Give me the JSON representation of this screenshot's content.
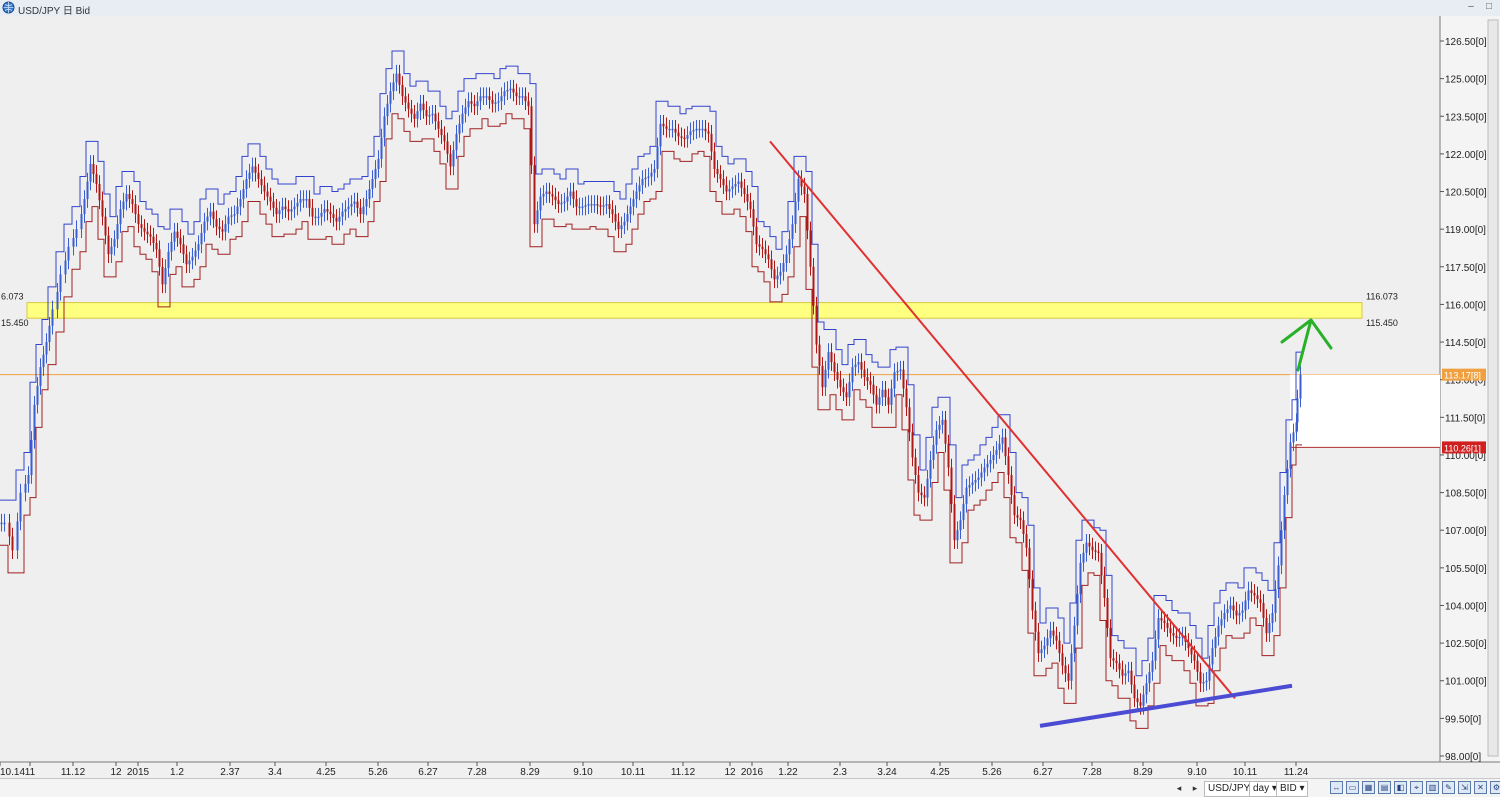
{
  "window": {
    "title": "USD/JPY 日 Bid",
    "logo_icon": "globe-icon",
    "buttons": [
      "–",
      "□"
    ]
  },
  "toolbar": {
    "instrument": "USD/JPY ▾",
    "period": "day ▾",
    "side": "BID ▾",
    "nav_left": "◂",
    "nav_right": "▸",
    "tools": [
      "↔",
      "▭",
      "▦",
      "▤",
      "◧",
      "⌖",
      "▥",
      "✎",
      "⇲",
      "✕",
      "⚙",
      "▣",
      "⚲",
      "⟲"
    ]
  },
  "chart_data": {
    "type": "candlestick",
    "instrument": "USD/JPY",
    "timeframe": "day",
    "price_side": "Bid",
    "ylim": [
      98.0,
      127.0
    ],
    "y_ticks": [
      "126.50[0]",
      "125.00[0]",
      "123.50[0]",
      "122.00[0]",
      "120.50[0]",
      "119.00[0]",
      "117.50[0]",
      "116.00[0]",
      "114.50[0]",
      "113.00[0]",
      "111.50[0]",
      "110.00[0]",
      "108.50[0]",
      "107.00[0]",
      "105.50[0]",
      "104.00[0]",
      "102.50[0]",
      "101.00[0]",
      "99.50[0]",
      "98.00[0]"
    ],
    "x_ticks": [
      "10.14",
      "11",
      "11.12",
      "12",
      "2015",
      "1.2",
      "2.37",
      "3.4",
      "4.25",
      "5.26",
      "6.27",
      "7.28",
      "8.29",
      "9.10",
      "10.11",
      "11.12",
      "12",
      "2016",
      "1.22",
      "2.3",
      "3.24",
      "4.25",
      "5.26",
      "6.27",
      "7.28",
      "8.29",
      "9.10",
      "10.11",
      "11.24"
    ],
    "price_path": [
      [
        0,
        107.3
      ],
      [
        8,
        106.2
      ],
      [
        16,
        108.5
      ],
      [
        24,
        109.2
      ],
      [
        30,
        112.0
      ],
      [
        36,
        113.5
      ],
      [
        42,
        114.5
      ],
      [
        48,
        115.8
      ],
      [
        56,
        117.2
      ],
      [
        64,
        118.3
      ],
      [
        72,
        119.0
      ],
      [
        80,
        120.2
      ],
      [
        86,
        121.6
      ],
      [
        92,
        120.8
      ],
      [
        98,
        119.5
      ],
      [
        104,
        118.0
      ],
      [
        110,
        118.6
      ],
      [
        116,
        119.8
      ],
      [
        122,
        120.4
      ],
      [
        128,
        120.0
      ],
      [
        134,
        119.2
      ],
      [
        140,
        118.9
      ],
      [
        146,
        118.7
      ],
      [
        152,
        118.2
      ],
      [
        158,
        116.8
      ],
      [
        164,
        118.1
      ],
      [
        170,
        118.9
      ],
      [
        176,
        118.4
      ],
      [
        182,
        117.6
      ],
      [
        188,
        117.9
      ],
      [
        194,
        118.4
      ],
      [
        200,
        119.3
      ],
      [
        206,
        119.7
      ],
      [
        212,
        119.1
      ],
      [
        218,
        118.9
      ],
      [
        224,
        119.5
      ],
      [
        230,
        119.6
      ],
      [
        236,
        120.2
      ],
      [
        242,
        121.0
      ],
      [
        248,
        121.5
      ],
      [
        254,
        121.0
      ],
      [
        260,
        120.5
      ],
      [
        266,
        120.1
      ],
      [
        272,
        119.6
      ],
      [
        278,
        119.9
      ],
      [
        284,
        119.7
      ],
      [
        290,
        119.9
      ],
      [
        296,
        120.2
      ],
      [
        302,
        120.2
      ],
      [
        308,
        119.5
      ],
      [
        314,
        119.5
      ],
      [
        320,
        119.8
      ],
      [
        326,
        119.6
      ],
      [
        332,
        119.3
      ],
      [
        338,
        119.7
      ],
      [
        344,
        119.9
      ],
      [
        350,
        120.1
      ],
      [
        356,
        119.6
      ],
      [
        362,
        120.2
      ],
      [
        368,
        121.0
      ],
      [
        374,
        121.8
      ],
      [
        380,
        123.5
      ],
      [
        386,
        124.5
      ],
      [
        392,
        125.2
      ],
      [
        398,
        124.3
      ],
      [
        404,
        123.8
      ],
      [
        410,
        123.4
      ],
      [
        416,
        124.0
      ],
      [
        422,
        123.5
      ],
      [
        428,
        123.6
      ],
      [
        434,
        123.0
      ],
      [
        440,
        122.5
      ],
      [
        446,
        121.5
      ],
      [
        452,
        122.8
      ],
      [
        458,
        123.6
      ],
      [
        464,
        124.1
      ],
      [
        470,
        123.9
      ],
      [
        476,
        124.3
      ],
      [
        482,
        124.3
      ],
      [
        488,
        124.0
      ],
      [
        494,
        124.1
      ],
      [
        500,
        124.5
      ],
      [
        506,
        124.6
      ],
      [
        512,
        124.3
      ],
      [
        518,
        124.3
      ],
      [
        524,
        123.9
      ],
      [
        530,
        119.2
      ],
      [
        536,
        120.3
      ],
      [
        542,
        120.5
      ],
      [
        548,
        120.3
      ],
      [
        554,
        120.0
      ],
      [
        560,
        120.1
      ],
      [
        566,
        120.5
      ],
      [
        572,
        119.9
      ],
      [
        578,
        119.9
      ],
      [
        584,
        120.0
      ],
      [
        590,
        120.0
      ],
      [
        596,
        119.9
      ],
      [
        602,
        120.0
      ],
      [
        608,
        119.6
      ],
      [
        614,
        119.0
      ],
      [
        620,
        119.3
      ],
      [
        626,
        119.9
      ],
      [
        632,
        120.5
      ],
      [
        638,
        121.0
      ],
      [
        644,
        121.1
      ],
      [
        650,
        121.4
      ],
      [
        656,
        123.2
      ],
      [
        662,
        123.0
      ],
      [
        668,
        123.0
      ],
      [
        674,
        122.7
      ],
      [
        680,
        122.6
      ],
      [
        686,
        122.9
      ],
      [
        692,
        123.0
      ],
      [
        698,
        123.0
      ],
      [
        704,
        122.8
      ],
      [
        710,
        121.4
      ],
      [
        716,
        121.0
      ],
      [
        722,
        120.5
      ],
      [
        728,
        120.7
      ],
      [
        734,
        120.9
      ],
      [
        740,
        120.4
      ],
      [
        746,
        119.8
      ],
      [
        752,
        118.4
      ],
      [
        758,
        118.2
      ],
      [
        764,
        117.8
      ],
      [
        770,
        117.0
      ],
      [
        776,
        117.3
      ],
      [
        782,
        118.0
      ],
      [
        788,
        119.2
      ],
      [
        794,
        121.0
      ],
      [
        800,
        120.4
      ],
      [
        806,
        117.5
      ],
      [
        812,
        114.4
      ],
      [
        818,
        112.7
      ],
      [
        824,
        114.1
      ],
      [
        830,
        113.3
      ],
      [
        836,
        112.7
      ],
      [
        842,
        112.3
      ],
      [
        848,
        113.5
      ],
      [
        854,
        113.7
      ],
      [
        860,
        113.1
      ],
      [
        866,
        112.8
      ],
      [
        872,
        112.0
      ],
      [
        878,
        112.6
      ],
      [
        884,
        112.0
      ],
      [
        890,
        113.3
      ],
      [
        896,
        113.4
      ],
      [
        902,
        111.9
      ],
      [
        908,
        109.9
      ],
      [
        914,
        108.5
      ],
      [
        920,
        108.3
      ],
      [
        926,
        109.8
      ],
      [
        932,
        111.0
      ],
      [
        938,
        111.4
      ],
      [
        944,
        109.5
      ],
      [
        950,
        106.6
      ],
      [
        956,
        107.4
      ],
      [
        962,
        108.7
      ],
      [
        968,
        108.9
      ],
      [
        974,
        109.1
      ],
      [
        980,
        109.5
      ],
      [
        986,
        109.8
      ],
      [
        992,
        110.2
      ],
      [
        998,
        110.7
      ],
      [
        1004,
        109.2
      ],
      [
        1010,
        107.6
      ],
      [
        1016,
        107.4
      ],
      [
        1022,
        106.3
      ],
      [
        1028,
        103.8
      ],
      [
        1034,
        102.1
      ],
      [
        1040,
        102.4
      ],
      [
        1046,
        103.0
      ],
      [
        1052,
        102.6
      ],
      [
        1058,
        101.6
      ],
      [
        1064,
        101.0
      ],
      [
        1070,
        103.2
      ],
      [
        1076,
        105.7
      ],
      [
        1082,
        106.5
      ],
      [
        1088,
        106.2
      ],
      [
        1094,
        106.1
      ],
      [
        1100,
        104.3
      ],
      [
        1106,
        101.9
      ],
      [
        1112,
        101.7
      ],
      [
        1118,
        101.2
      ],
      [
        1124,
        101.4
      ],
      [
        1130,
        100.3
      ],
      [
        1136,
        100.0
      ],
      [
        1142,
        100.9
      ],
      [
        1148,
        101.8
      ],
      [
        1154,
        103.5
      ],
      [
        1160,
        103.3
      ],
      [
        1166,
        102.9
      ],
      [
        1172,
        102.7
      ],
      [
        1178,
        102.8
      ],
      [
        1184,
        102.3
      ],
      [
        1190,
        101.8
      ],
      [
        1196,
        100.9
      ],
      [
        1202,
        101.0
      ],
      [
        1208,
        102.3
      ],
      [
        1214,
        103.2
      ],
      [
        1220,
        103.7
      ],
      [
        1226,
        104.0
      ],
      [
        1232,
        103.6
      ],
      [
        1238,
        103.8
      ],
      [
        1244,
        104.6
      ],
      [
        1250,
        104.4
      ],
      [
        1256,
        104.1
      ],
      [
        1262,
        102.9
      ],
      [
        1268,
        103.7
      ],
      [
        1274,
        105.6
      ],
      [
        1280,
        108.4
      ],
      [
        1286,
        110.5
      ],
      [
        1292,
        111.3
      ],
      [
        1296,
        113.2
      ]
    ],
    "annotations": {
      "resistance_zone": {
        "low": 115.45,
        "high": 116.073,
        "low_label": "115.450",
        "high_label": "116.073",
        "left_low_label": "15.450",
        "left_high_label": "6.073"
      },
      "current_price": {
        "value": 113.2,
        "label": "113.17[8]"
      },
      "secondary_price": {
        "value": 110.3,
        "label": "110.26[1]"
      },
      "downtrend_line": {
        "from": [
          770,
          122.5
        ],
        "to": [
          1235,
          100.3
        ]
      },
      "uptrend_line": {
        "from": [
          1040,
          99.2
        ],
        "to": [
          1292,
          100.8
        ]
      },
      "up_arrow": "arrow-up-icon",
      "colors": {
        "zone": "#ffff80",
        "downtrend": "#e03030",
        "uptrend": "#4b4bd4",
        "arrow": "#28b028",
        "up_candle": "#3b5fd0",
        "down_candle": "#b01818",
        "price_line": "#f0a040"
      }
    }
  }
}
